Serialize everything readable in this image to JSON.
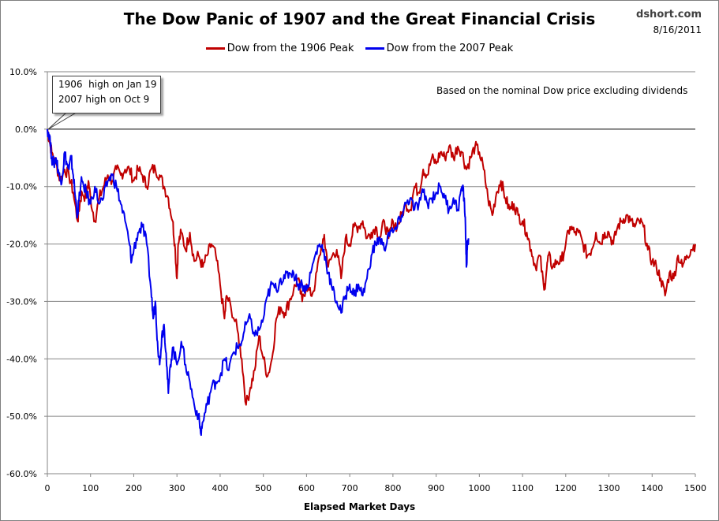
{
  "header": {
    "title": "The Dow Panic of 1907 and the Great Financial Crisis",
    "source": "dshort.com",
    "date": "8/16/2011"
  },
  "note": "Based on the nominal Dow price excluding dividends",
  "callout": {
    "line1": "1906  high on Jan 19",
    "line2": "2007 high on Oct 9"
  },
  "chart_data": {
    "type": "line",
    "title": "The Dow Panic of 1907 and the Great Financial Crisis",
    "xlabel": "Elapsed Market Days",
    "ylabel": "",
    "xlim": [
      0,
      1500
    ],
    "ylim": [
      -60,
      10
    ],
    "x_ticks": [
      "0",
      "100",
      "200",
      "300",
      "400",
      "500",
      "600",
      "700",
      "800",
      "900",
      "1000",
      "1100",
      "1200",
      "1300",
      "1400",
      "1500"
    ],
    "y_ticks": [
      "10.0%",
      "0.0%",
      "-10.0%",
      "-20.0%",
      "-30.0%",
      "-40.0%",
      "-50.0%",
      "-60.0%"
    ],
    "grid": "horizontal",
    "legend": "top-center",
    "series": [
      {
        "name": "Dow from the 1906 Peak",
        "color": "#c00000",
        "points": [
          [
            0,
            0
          ],
          [
            5,
            -2
          ],
          [
            10,
            -4
          ],
          [
            20,
            -6
          ],
          [
            30,
            -9
          ],
          [
            40,
            -7
          ],
          [
            50,
            -8
          ],
          [
            60,
            -11
          ],
          [
            70,
            -16
          ],
          [
            75,
            -13
          ],
          [
            80,
            -11
          ],
          [
            90,
            -12
          ],
          [
            95,
            -9
          ],
          [
            100,
            -12
          ],
          [
            110,
            -16
          ],
          [
            120,
            -12
          ],
          [
            130,
            -10
          ],
          [
            140,
            -8
          ],
          [
            150,
            -9
          ],
          [
            160,
            -7
          ],
          [
            170,
            -8
          ],
          [
            180,
            -7
          ],
          [
            190,
            -7
          ],
          [
            200,
            -9
          ],
          [
            210,
            -7
          ],
          [
            220,
            -8
          ],
          [
            230,
            -10
          ],
          [
            240,
            -7
          ],
          [
            250,
            -7
          ],
          [
            260,
            -8
          ],
          [
            270,
            -10
          ],
          [
            280,
            -12
          ],
          [
            290,
            -16
          ],
          [
            295,
            -20
          ],
          [
            300,
            -26
          ],
          [
            303,
            -20
          ],
          [
            310,
            -18
          ],
          [
            320,
            -21
          ],
          [
            330,
            -18
          ],
          [
            340,
            -23
          ],
          [
            350,
            -22
          ],
          [
            360,
            -24
          ],
          [
            370,
            -22
          ],
          [
            380,
            -20
          ],
          [
            390,
            -22
          ],
          [
            400,
            -27
          ],
          [
            410,
            -33
          ],
          [
            415,
            -29
          ],
          [
            425,
            -31
          ],
          [
            440,
            -35
          ],
          [
            450,
            -40
          ],
          [
            460,
            -48
          ],
          [
            470,
            -45
          ],
          [
            480,
            -42
          ],
          [
            490,
            -36
          ],
          [
            500,
            -40
          ],
          [
            510,
            -43
          ],
          [
            520,
            -40
          ],
          [
            530,
            -33
          ],
          [
            540,
            -31
          ],
          [
            550,
            -32
          ],
          [
            560,
            -30
          ],
          [
            570,
            -28
          ],
          [
            580,
            -26
          ],
          [
            590,
            -30
          ],
          [
            600,
            -27
          ],
          [
            610,
            -29
          ],
          [
            620,
            -27
          ],
          [
            630,
            -22
          ],
          [
            640,
            -19
          ],
          [
            645,
            -21
          ],
          [
            650,
            -24
          ],
          [
            660,
            -22
          ],
          [
            670,
            -21
          ],
          [
            680,
            -26
          ],
          [
            690,
            -19
          ],
          [
            700,
            -20
          ],
          [
            710,
            -17
          ],
          [
            720,
            -17
          ],
          [
            730,
            -16
          ],
          [
            740,
            -19
          ],
          [
            750,
            -18
          ],
          [
            760,
            -17
          ],
          [
            770,
            -19
          ],
          [
            780,
            -16
          ],
          [
            790,
            -19
          ],
          [
            800,
            -16
          ],
          [
            810,
            -17
          ],
          [
            820,
            -15
          ],
          [
            830,
            -13
          ],
          [
            840,
            -14
          ],
          [
            850,
            -10
          ],
          [
            860,
            -11
          ],
          [
            870,
            -7
          ],
          [
            880,
            -8
          ],
          [
            890,
            -5
          ],
          [
            900,
            -6
          ],
          [
            910,
            -4
          ],
          [
            920,
            -5
          ],
          [
            930,
            -3
          ],
          [
            940,
            -5
          ],
          [
            950,
            -3
          ],
          [
            960,
            -4
          ],
          [
            970,
            -7
          ],
          [
            980,
            -5
          ],
          [
            990,
            -3
          ],
          [
            1000,
            -4
          ],
          [
            1010,
            -7
          ],
          [
            1020,
            -12
          ],
          [
            1030,
            -15
          ],
          [
            1040,
            -11
          ],
          [
            1050,
            -9
          ],
          [
            1060,
            -12
          ],
          [
            1070,
            -14
          ],
          [
            1080,
            -13
          ],
          [
            1090,
            -15
          ],
          [
            1100,
            -16
          ],
          [
            1110,
            -18
          ],
          [
            1120,
            -21
          ],
          [
            1130,
            -24
          ],
          [
            1140,
            -22
          ],
          [
            1150,
            -28
          ],
          [
            1155,
            -25
          ],
          [
            1160,
            -22
          ],
          [
            1170,
            -24
          ],
          [
            1180,
            -23
          ],
          [
            1190,
            -23
          ],
          [
            1200,
            -20
          ],
          [
            1210,
            -17
          ],
          [
            1220,
            -18
          ],
          [
            1230,
            -18
          ],
          [
            1240,
            -20
          ],
          [
            1250,
            -22
          ],
          [
            1260,
            -21
          ],
          [
            1270,
            -18
          ],
          [
            1280,
            -20
          ],
          [
            1290,
            -18
          ],
          [
            1300,
            -18
          ],
          [
            1310,
            -20
          ],
          [
            1320,
            -17
          ],
          [
            1330,
            -16
          ],
          [
            1340,
            -15
          ],
          [
            1350,
            -16
          ],
          [
            1360,
            -17
          ],
          [
            1370,
            -16
          ],
          [
            1380,
            -17
          ],
          [
            1390,
            -21
          ],
          [
            1400,
            -23
          ],
          [
            1410,
            -24
          ],
          [
            1420,
            -26
          ],
          [
            1430,
            -29
          ],
          [
            1440,
            -25
          ],
          [
            1450,
            -26
          ],
          [
            1460,
            -22
          ],
          [
            1470,
            -24
          ],
          [
            1480,
            -22
          ],
          [
            1490,
            -21
          ],
          [
            1500,
            -20
          ]
        ]
      },
      {
        "name": "Dow from the 2007 Peak",
        "color": "#0000ee",
        "points": [
          [
            0,
            0
          ],
          [
            5,
            -1
          ],
          [
            10,
            -5
          ],
          [
            15,
            -6
          ],
          [
            20,
            -5
          ],
          [
            25,
            -7
          ],
          [
            30,
            -9
          ],
          [
            35,
            -8
          ],
          [
            40,
            -4
          ],
          [
            45,
            -6
          ],
          [
            50,
            -7
          ],
          [
            55,
            -5
          ],
          [
            60,
            -8
          ],
          [
            65,
            -12
          ],
          [
            70,
            -15
          ],
          [
            75,
            -11
          ],
          [
            80,
            -9
          ],
          [
            90,
            -11
          ],
          [
            100,
            -13
          ],
          [
            110,
            -10
          ],
          [
            120,
            -13
          ],
          [
            130,
            -12
          ],
          [
            140,
            -9
          ],
          [
            150,
            -8
          ],
          [
            160,
            -10
          ],
          [
            170,
            -13
          ],
          [
            180,
            -16
          ],
          [
            190,
            -20
          ],
          [
            195,
            -23
          ],
          [
            200,
            -21
          ],
          [
            210,
            -18
          ],
          [
            220,
            -17
          ],
          [
            230,
            -20
          ],
          [
            240,
            -28
          ],
          [
            245,
            -33
          ],
          [
            250,
            -30
          ],
          [
            255,
            -37
          ],
          [
            260,
            -41
          ],
          [
            265,
            -36
          ],
          [
            270,
            -34
          ],
          [
            275,
            -39
          ],
          [
            280,
            -46
          ],
          [
            285,
            -41
          ],
          [
            290,
            -38
          ],
          [
            300,
            -41
          ],
          [
            310,
            -37
          ],
          [
            320,
            -41
          ],
          [
            330,
            -44
          ],
          [
            340,
            -48
          ],
          [
            350,
            -50
          ],
          [
            355,
            -53
          ],
          [
            360,
            -51
          ],
          [
            370,
            -48
          ],
          [
            380,
            -45
          ],
          [
            390,
            -44
          ],
          [
            400,
            -43
          ],
          [
            410,
            -40
          ],
          [
            420,
            -42
          ],
          [
            430,
            -39
          ],
          [
            440,
            -38
          ],
          [
            450,
            -37
          ],
          [
            460,
            -34
          ],
          [
            470,
            -33
          ],
          [
            480,
            -36
          ],
          [
            490,
            -35
          ],
          [
            500,
            -33
          ],
          [
            510,
            -29
          ],
          [
            520,
            -27
          ],
          [
            530,
            -28
          ],
          [
            540,
            -26
          ],
          [
            550,
            -26
          ],
          [
            560,
            -25
          ],
          [
            570,
            -25
          ],
          [
            580,
            -27
          ],
          [
            590,
            -27
          ],
          [
            600,
            -28
          ],
          [
            610,
            -25
          ],
          [
            620,
            -22
          ],
          [
            630,
            -20
          ],
          [
            640,
            -21
          ],
          [
            650,
            -25
          ],
          [
            660,
            -28
          ],
          [
            670,
            -30
          ],
          [
            680,
            -32
          ],
          [
            690,
            -29
          ],
          [
            700,
            -27
          ],
          [
            710,
            -29
          ],
          [
            720,
            -27
          ],
          [
            730,
            -29
          ],
          [
            740,
            -26
          ],
          [
            750,
            -22
          ],
          [
            760,
            -20
          ],
          [
            770,
            -19
          ],
          [
            780,
            -21
          ],
          [
            790,
            -18
          ],
          [
            800,
            -18
          ],
          [
            810,
            -17
          ],
          [
            820,
            -15
          ],
          [
            830,
            -13
          ],
          [
            840,
            -12
          ],
          [
            850,
            -14
          ],
          [
            860,
            -13
          ],
          [
            870,
            -11
          ],
          [
            880,
            -13
          ],
          [
            890,
            -12
          ],
          [
            900,
            -11
          ],
          [
            910,
            -10
          ],
          [
            920,
            -12
          ],
          [
            930,
            -14
          ],
          [
            940,
            -12
          ],
          [
            950,
            -14
          ],
          [
            960,
            -10
          ],
          [
            965,
            -12
          ],
          [
            968,
            -17
          ],
          [
            970,
            -24
          ],
          [
            972,
            -21
          ],
          [
            975,
            -19
          ]
        ]
      }
    ]
  }
}
